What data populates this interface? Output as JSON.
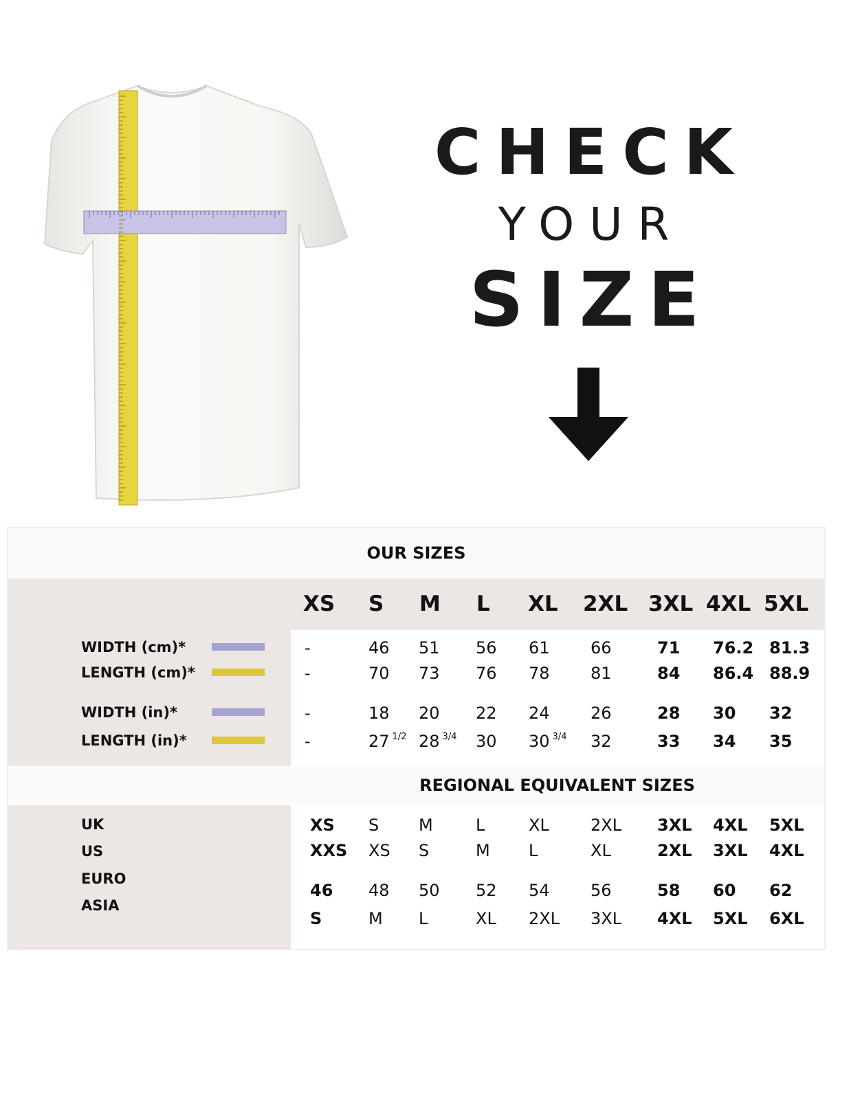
{
  "heading": {
    "line1": "CHECK",
    "line2": "YOUR",
    "line3": "SIZE"
  },
  "colors": {
    "width_swatch": "#a4a3d2",
    "length_swatch": "#dcc63b",
    "panel_bg": "#ece7e4"
  },
  "icons": {
    "arrow": "arrow-down-icon",
    "shirt": "t-shirt-with-measuring-tapes"
  },
  "our_sizes": {
    "title": "OUR SIZES",
    "sizes": [
      "XS",
      "S",
      "M",
      "L",
      "XL",
      "2XL",
      "3XL",
      "4XL",
      "5XL"
    ],
    "rows": [
      {
        "label": "WIDTH (cm)*",
        "swatch": "width",
        "values": [
          {
            "v": "-"
          },
          {
            "v": "46"
          },
          {
            "v": "51"
          },
          {
            "v": "56"
          },
          {
            "v": "61"
          },
          {
            "v": "66"
          },
          {
            "v": "71"
          },
          {
            "v": "76.2"
          },
          {
            "v": "81.3"
          }
        ]
      },
      {
        "label": "LENGTH (cm)*",
        "swatch": "length",
        "values": [
          {
            "v": "-"
          },
          {
            "v": "70"
          },
          {
            "v": "73"
          },
          {
            "v": "76"
          },
          {
            "v": "78"
          },
          {
            "v": "81"
          },
          {
            "v": "84"
          },
          {
            "v": "86.4"
          },
          {
            "v": "88.9"
          }
        ]
      },
      {
        "label": "WIDTH (in)*",
        "swatch": "width",
        "values": [
          {
            "v": "-"
          },
          {
            "v": "18"
          },
          {
            "v": "20"
          },
          {
            "v": "22"
          },
          {
            "v": "24"
          },
          {
            "v": "26"
          },
          {
            "v": "28"
          },
          {
            "v": "30"
          },
          {
            "v": "32"
          }
        ]
      },
      {
        "label": "LENGTH (in)*",
        "swatch": "length",
        "values": [
          {
            "v": "-"
          },
          {
            "v": "27",
            "frac": "1/2"
          },
          {
            "v": "28",
            "frac": "3/4"
          },
          {
            "v": "30"
          },
          {
            "v": "30",
            "frac": "3/4"
          },
          {
            "v": "32"
          },
          {
            "v": "33"
          },
          {
            "v": "34"
          },
          {
            "v": "35"
          }
        ]
      }
    ]
  },
  "regional": {
    "title": "REGIONAL EQUIVALENT SIZES",
    "rows": [
      {
        "label": "UK",
        "values": [
          "XS",
          "S",
          "M",
          "L",
          "XL",
          "2XL",
          "3XL",
          "4XL",
          "5XL"
        ]
      },
      {
        "label": "US",
        "values": [
          "XXS",
          "XS",
          "S",
          "M",
          "L",
          "XL",
          "2XL",
          "3XL",
          "4XL"
        ]
      },
      {
        "label": "EURO",
        "values": [
          "46",
          "48",
          "50",
          "52",
          "54",
          "56",
          "58",
          "60",
          "62"
        ]
      },
      {
        "label": "ASIA",
        "values": [
          "S",
          "M",
          "L",
          "XL",
          "2XL",
          "3XL",
          "4XL",
          "5XL",
          "6XL"
        ]
      }
    ]
  }
}
